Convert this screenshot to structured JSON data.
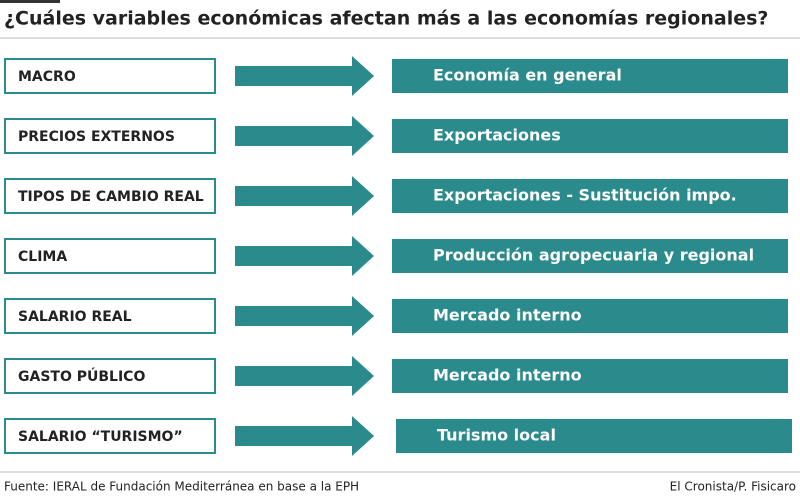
{
  "title": "¿Cuáles variables económicas afectan más a las economías regionales?",
  "rows": [
    {
      "variable": "MACRO",
      "effect": "Economía en general"
    },
    {
      "variable": "PRECIOS EXTERNOS",
      "effect": "Exportaciones"
    },
    {
      "variable": "TIPOS DE CAMBIO REAL",
      "effect": "Exportaciones - Sustitución impo."
    },
    {
      "variable": "CLIMA",
      "effect": "Producción agropecuaria y regional"
    },
    {
      "variable": "SALARIO REAL",
      "effect": "Mercado interno"
    },
    {
      "variable": "GASTO PÚBLICO",
      "effect": "Mercado interno"
    },
    {
      "variable": "SALARIO “TURISMO”",
      "effect": "Turismo local"
    }
  ],
  "footer": {
    "source": "Fuente: IERAL de Fundación Mediterránea en base a la EPH",
    "credit": "El Cronista/P. Fisicaro"
  }
}
